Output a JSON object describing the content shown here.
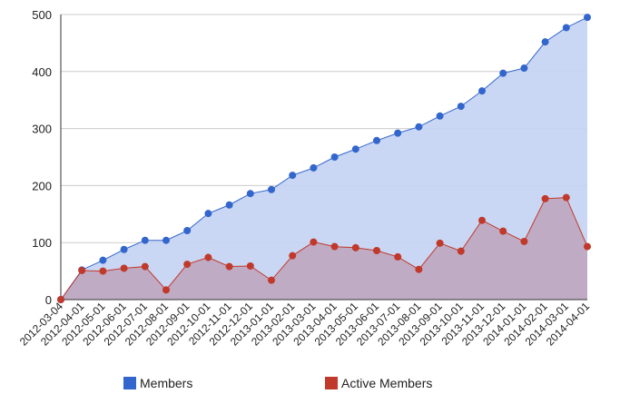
{
  "chart_data": {
    "type": "area",
    "x": [
      "2012-03-04",
      "2012-04-01",
      "2012-05-01",
      "2012-06-01",
      "2012-07-01",
      "2012-08-01",
      "2012-09-01",
      "2012-10-01",
      "2012-11-01",
      "2012-12-01",
      "2013-01-01",
      "2013-02-01",
      "2013-03-01",
      "2013-04-01",
      "2013-05-01",
      "2013-06-01",
      "2013-07-01",
      "2013-08-01",
      "2013-09-01",
      "2013-10-01",
      "2013-11-01",
      "2013-12-01",
      "2014-01-01",
      "2014-02-01",
      "2014-03-01",
      "2014-04-01"
    ],
    "series": [
      {
        "name": "Members",
        "color": "#3366cc",
        "fill": "#c3d3f3",
        "values": [
          0,
          52,
          69,
          88,
          104,
          104,
          121,
          151,
          166,
          186,
          193,
          218,
          231,
          250,
          264,
          279,
          292,
          303,
          322,
          339,
          366,
          397,
          406,
          452,
          477,
          495
        ]
      },
      {
        "name": "Active Members",
        "color": "#c0392b",
        "fill": "#bfa6bf",
        "values": [
          0,
          51,
          50,
          55,
          58,
          17,
          62,
          74,
          58,
          59,
          34,
          77,
          101,
          93,
          91,
          86,
          75,
          53,
          99,
          85,
          139,
          120,
          102,
          177,
          179,
          93
        ]
      }
    ],
    "ylim": [
      0,
      500
    ],
    "yticks": [
      0,
      100,
      200,
      300,
      400,
      500
    ],
    "grid": true,
    "legend": "bottom"
  }
}
